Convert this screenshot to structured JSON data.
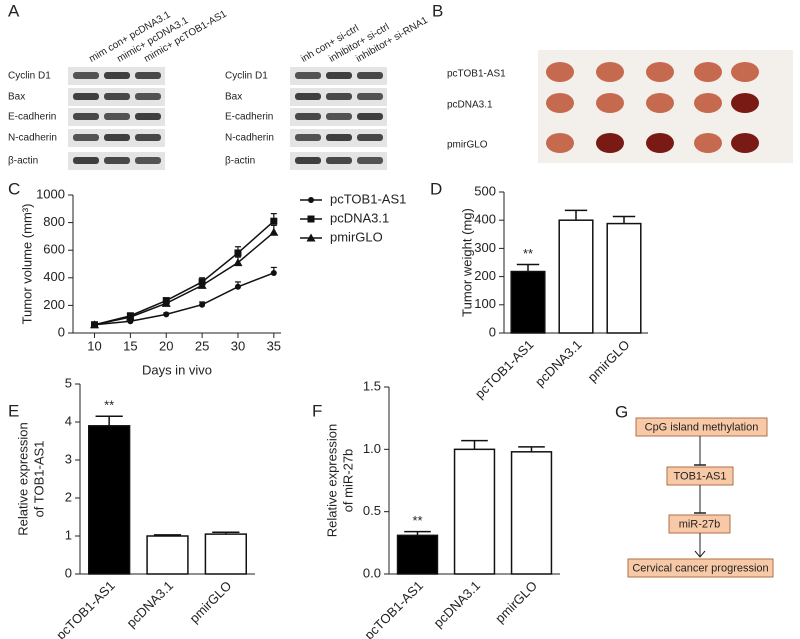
{
  "blot_a": {
    "label": "A",
    "left": {
      "columns": [
        "mim con+ pcDNA3.1",
        "mimic+ pcDNA3.1",
        "mimic+ pcTOB1-AS1"
      ],
      "rows": [
        "Cyclin D1",
        "Bax",
        "E-cadherin",
        "N-cadherin",
        "β-actin"
      ]
    },
    "right": {
      "columns": [
        "inh con+ si-ctrl",
        "inhibitor+ si-ctrl",
        "inhibitor+ si-RNA1"
      ],
      "rows": [
        "Cyclin D1",
        "Bax",
        "E-cadherin",
        "N-cadherin",
        "β-actin"
      ]
    }
  },
  "photo_b": {
    "label": "B",
    "rows": [
      "pcTOB1-AS1",
      "pcDNA3.1",
      "pmirGLO"
    ]
  },
  "diagram_g": {
    "label": "G",
    "nodes": [
      {
        "label": "CpG island methylation"
      },
      {
        "label": "TOB1-AS1"
      },
      {
        "label": "miR-27b"
      },
      {
        "label": "Cervical cancer progression"
      }
    ]
  },
  "chart_data": [
    {
      "type": "line",
      "label": "C",
      "xlabel": "Days in vivo",
      "ylabel": [
        "Tumor volume (mm³)"
      ],
      "x": [
        10,
        15,
        20,
        25,
        30,
        35
      ],
      "xlim": [
        7,
        36
      ],
      "xticks": [
        10,
        15,
        20,
        25,
        30,
        35
      ],
      "ylim": [
        0,
        1000
      ],
      "yticks": [
        0,
        200,
        400,
        600,
        800,
        1000
      ],
      "series": [
        {
          "name": "pcTOB1-AS1",
          "color": "#111111",
          "marker": "circle",
          "values": [
            60,
            85,
            135,
            205,
            335,
            435
          ],
          "errors": [
            5,
            8,
            10,
            20,
            35,
            40
          ]
        },
        {
          "name": "pcDNA3.1",
          "color": "#111111",
          "marker": "square",
          "values": [
            60,
            125,
            235,
            370,
            580,
            810
          ],
          "errors": [
            5,
            10,
            15,
            30,
            45,
            55
          ]
        },
        {
          "name": "pmirGLO",
          "color": "#111111",
          "marker": "triangle",
          "values": [
            60,
            115,
            215,
            345,
            510,
            730
          ],
          "errors": [
            5,
            10,
            15,
            28,
            40,
            50
          ]
        }
      ],
      "legend": "right"
    },
    {
      "type": "bar",
      "label": "D",
      "ylabel": [
        "Tumor weight (mg)"
      ],
      "categories": [
        "pcTOB1-AS1",
        "pcDNA3.1",
        "pmirGLO"
      ],
      "values": [
        218,
        400,
        388
      ],
      "errors": [
        25,
        35,
        25
      ],
      "colors": [
        "#000000",
        "#ffffff",
        "#ffffff"
      ],
      "ylim": [
        0,
        500
      ],
      "yticks": [
        0,
        100,
        200,
        300,
        400,
        500
      ],
      "annotation": "**"
    },
    {
      "type": "bar",
      "label": "E",
      "ylabel": [
        "Relative expression",
        "of TOB1-AS1"
      ],
      "categories": [
        "pcTOB1-AS1",
        "pcDNA3.1",
        "pmirGLO"
      ],
      "values": [
        3.9,
        1.0,
        1.05
      ],
      "errors": [
        0.25,
        0.03,
        0.05
      ],
      "colors": [
        "#000000",
        "#ffffff",
        "#ffffff"
      ],
      "ylim": [
        0,
        5
      ],
      "yticks": [
        0,
        1,
        2,
        3,
        4,
        5
      ],
      "annotation": "**"
    },
    {
      "type": "bar",
      "label": "F",
      "ylabel": [
        "Relative expression",
        "of miR-27b"
      ],
      "categories": [
        "pcTOB1-AS1",
        "pcDNA3.1",
        "pmirGLO"
      ],
      "values": [
        0.31,
        1.0,
        0.98
      ],
      "errors": [
        0.03,
        0.07,
        0.04
      ],
      "colors": [
        "#000000",
        "#ffffff",
        "#ffffff"
      ],
      "ylim": [
        0,
        1.5
      ],
      "yticks": [
        {
          "value": 0,
          "label": "0.0"
        },
        {
          "value": 0.5,
          "label": "0.5"
        },
        {
          "value": 1,
          "label": "1.0"
        },
        {
          "value": 1.5,
          "label": "1.5"
        }
      ],
      "annotation": "**"
    }
  ]
}
